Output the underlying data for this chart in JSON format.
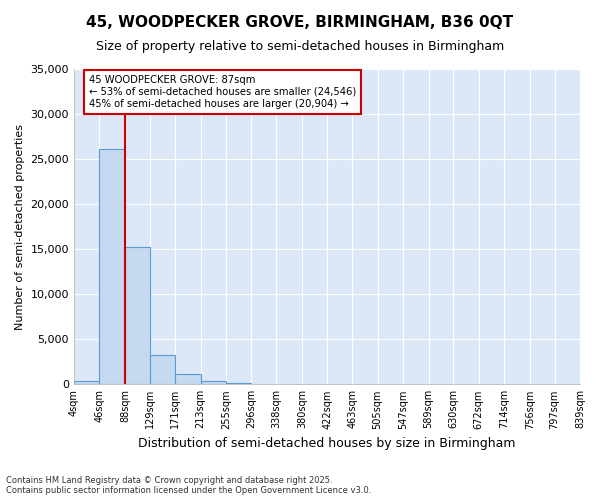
{
  "title": "45, WOODPECKER GROVE, BIRMINGHAM, B36 0QT",
  "subtitle": "Size of property relative to semi-detached houses in Birmingham",
  "xlabel": "Distribution of semi-detached houses by size in Birmingham",
  "ylabel": "Number of semi-detached properties",
  "bar_color": "#c5d9f0",
  "bar_edge_color": "#5b9bd5",
  "bin_edges": [
    4,
    46,
    88,
    129,
    171,
    213,
    255,
    296,
    338,
    380,
    422,
    463,
    505,
    547,
    589,
    630,
    672,
    714,
    756,
    797,
    839
  ],
  "bin_labels": [
    "4sqm",
    "46sqm",
    "88sqm",
    "129sqm",
    "171sqm",
    "213sqm",
    "255sqm",
    "296sqm",
    "338sqm",
    "380sqm",
    "422sqm",
    "463sqm",
    "505sqm",
    "547sqm",
    "589sqm",
    "630sqm",
    "672sqm",
    "714sqm",
    "756sqm",
    "797sqm",
    "839sqm"
  ],
  "bar_heights": [
    400,
    26100,
    15200,
    3200,
    1100,
    400,
    100,
    0,
    0,
    0,
    0,
    0,
    0,
    0,
    0,
    0,
    0,
    0,
    0,
    0
  ],
  "property_label": "45 WOODPECKER GROVE: 87sqm",
  "pct_smaller": 53,
  "n_smaller": 24546,
  "pct_larger": 45,
  "n_larger": 20904,
  "vline_x": 88,
  "ylim": [
    0,
    35000
  ],
  "yticks": [
    0,
    5000,
    10000,
    15000,
    20000,
    25000,
    30000,
    35000
  ],
  "annotation_box_color": "#ffffff",
  "annotation_box_edge": "#cc0000",
  "vline_color": "#cc0000",
  "footer1": "Contains HM Land Registry data © Crown copyright and database right 2025.",
  "footer2": "Contains public sector information licensed under the Open Government Licence v3.0.",
  "figure_bg": "#ffffff",
  "plot_bg": "#dce8f8",
  "grid_color": "#ffffff",
  "title_fontsize": 11,
  "subtitle_fontsize": 9
}
